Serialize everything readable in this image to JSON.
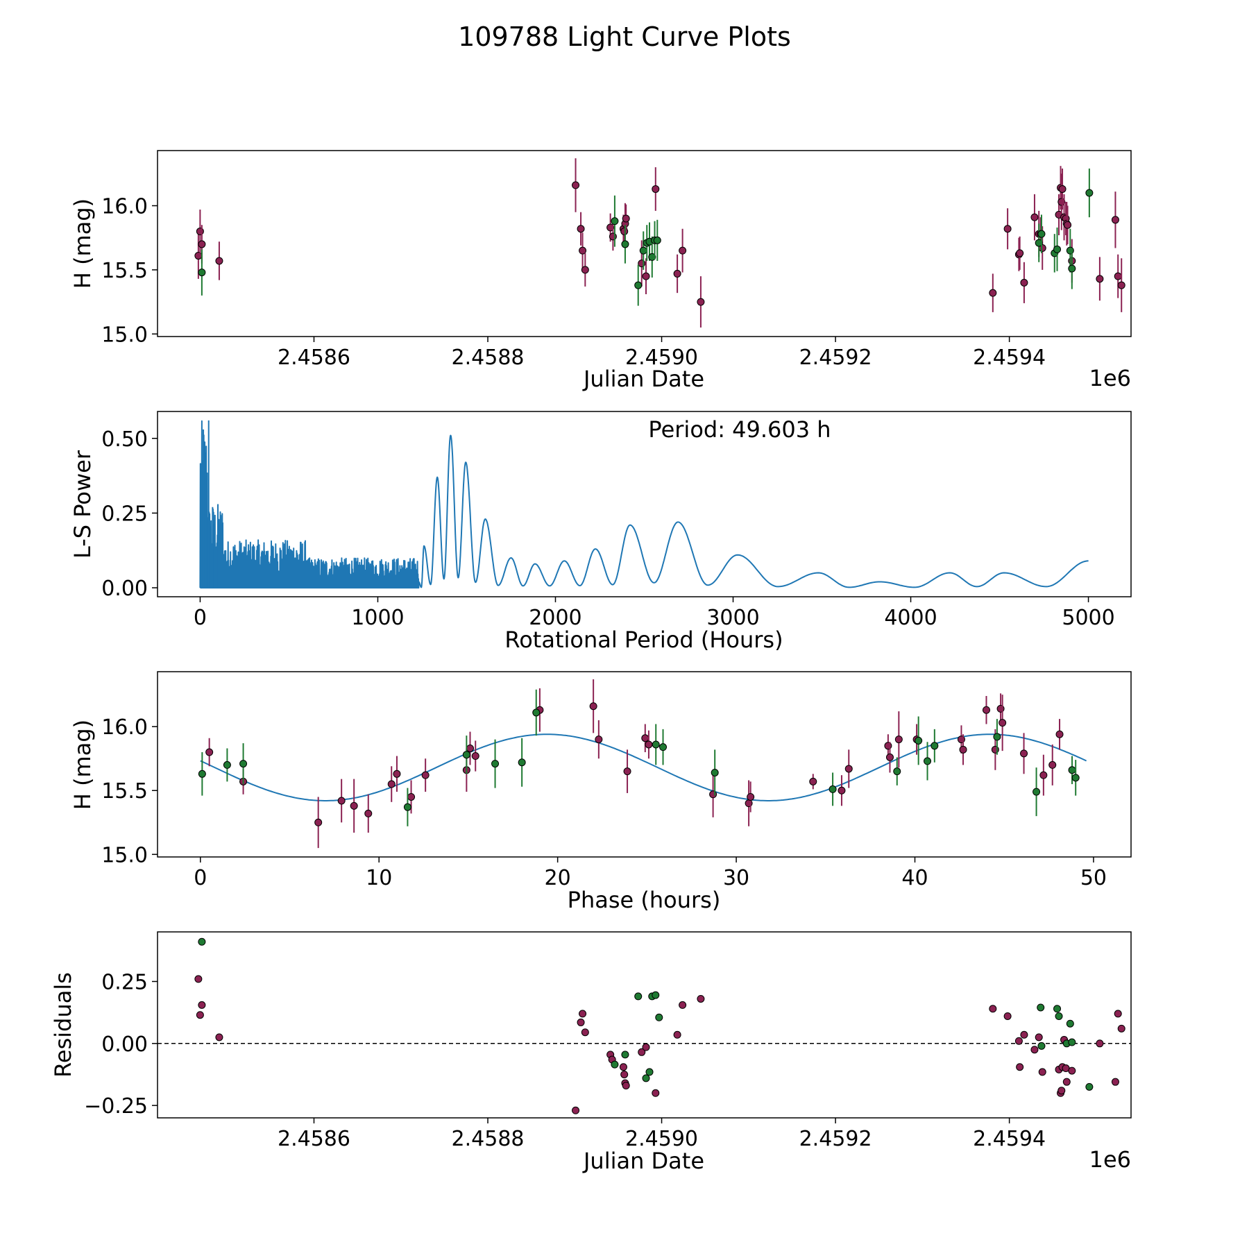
{
  "figure": {
    "title": "109788 Light Curve Plots"
  },
  "colors": {
    "maroon": "#8b2252",
    "green": "#1f7a32",
    "curve": "#1f77b4",
    "axis": "#000000"
  },
  "chart_data": [
    {
      "id": "jd",
      "type": "scatter",
      "title": "",
      "xlabel": "Julian Date",
      "ylabel": "H (mag)",
      "offset_text": "1e6",
      "xlim": [
        2.45842,
        2.45954
      ],
      "ylim": [
        14.98,
        16.43
      ],
      "xticks": [
        2.4586,
        2.4588,
        2.459,
        2.4592,
        2.4594
      ],
      "xtick_labels": [
        "2.4586",
        "2.4588",
        "2.4590",
        "2.4592",
        "2.4594"
      ],
      "yticks": [
        15.0,
        15.5,
        16.0
      ],
      "ytick_labels": [
        "15.0",
        "15.5",
        "16.0"
      ],
      "series": [
        {
          "name": "filter-maroon",
          "color": "maroon",
          "points": [
            [
              2.458467,
              15.61,
              0.18
            ],
            [
              2.458469,
              15.8,
              0.17
            ],
            [
              2.458471,
              15.7,
              0.15
            ],
            [
              2.458491,
              15.57,
              0.15
            ],
            [
              2.458901,
              16.16,
              0.21
            ],
            [
              2.458907,
              15.82,
              0.13
            ],
            [
              2.458909,
              15.65,
              0.14
            ],
            [
              2.458912,
              15.5,
              0.13
            ],
            [
              2.458941,
              15.83,
              0.11
            ],
            [
              2.458944,
              15.76,
              0.11
            ],
            [
              2.458956,
              15.82,
              0.11
            ],
            [
              2.458957,
              15.8,
              0.12
            ],
            [
              2.458958,
              15.86,
              0.16
            ],
            [
              2.458959,
              15.9,
              0.11
            ],
            [
              2.458977,
              15.55,
              0.18
            ],
            [
              2.458982,
              15.45,
              0.14
            ],
            [
              2.458993,
              16.13,
              0.17
            ],
            [
              2.459018,
              15.47,
              0.15
            ],
            [
              2.459024,
              15.65,
              0.17
            ],
            [
              2.459045,
              15.25,
              0.2
            ],
            [
              2.459381,
              15.32,
              0.15
            ],
            [
              2.459398,
              15.82,
              0.16
            ],
            [
              2.459411,
              15.62,
              0.13
            ],
            [
              2.459412,
              15.63,
              0.13
            ],
            [
              2.459417,
              15.4,
              0.16
            ],
            [
              2.459429,
              15.91,
              0.18
            ],
            [
              2.459434,
              15.78,
              0.18
            ],
            [
              2.459436,
              15.78,
              0.13
            ],
            [
              2.459438,
              15.67,
              0.17
            ],
            [
              2.459457,
              15.93,
              0.16
            ],
            [
              2.459459,
              16.14,
              0.17
            ],
            [
              2.45946,
              16.03,
              0.22
            ],
            [
              2.459461,
              16.13,
              0.16
            ],
            [
              2.459463,
              15.91,
              0.18
            ],
            [
              2.459465,
              15.9,
              0.13
            ],
            [
              2.459466,
              15.86,
              0.17
            ],
            [
              2.459467,
              15.85,
              0.15
            ],
            [
              2.459472,
              15.57,
              0.17
            ],
            [
              2.459504,
              15.43,
              0.17
            ],
            [
              2.459522,
              15.89,
              0.22
            ],
            [
              2.459525,
              15.45,
              0.17
            ],
            [
              2.459529,
              15.38,
              0.21
            ]
          ]
        },
        {
          "name": "filter-green",
          "color": "green",
          "points": [
            [
              2.458471,
              15.48,
              0.18
            ],
            [
              2.458946,
              15.88,
              0.2
            ],
            [
              2.458958,
              15.7,
              0.15
            ],
            [
              2.458973,
              15.38,
              0.16
            ],
            [
              2.458979,
              15.65,
              0.15
            ],
            [
              2.458983,
              15.71,
              0.14
            ],
            [
              2.458986,
              15.72,
              0.15
            ],
            [
              2.458989,
              15.6,
              0.16
            ],
            [
              2.458992,
              15.73,
              0.15
            ],
            [
              2.458995,
              15.73,
              0.16
            ],
            [
              2.459434,
              15.71,
              0.15
            ],
            [
              2.459437,
              15.78,
              0.15
            ],
            [
              2.459452,
              15.63,
              0.15
            ],
            [
              2.459455,
              15.66,
              0.17
            ],
            [
              2.45947,
              15.65,
              0.17
            ],
            [
              2.459472,
              15.51,
              0.16
            ],
            [
              2.459492,
              16.1,
              0.19
            ]
          ]
        }
      ]
    },
    {
      "id": "periodogram",
      "type": "line",
      "title": "",
      "xlabel": "Rotational Period (Hours)",
      "ylabel": "L-S Power",
      "annotation": "Period: 49.603 h",
      "xlim": [
        -240,
        5240
      ],
      "ylim": [
        -0.03,
        0.59
      ],
      "xticks": [
        0,
        1000,
        2000,
        3000,
        4000,
        5000
      ],
      "xtick_labels": [
        "0",
        "1000",
        "2000",
        "3000",
        "4000",
        "5000"
      ],
      "yticks": [
        0.0,
        0.25,
        0.5
      ],
      "ytick_labels": [
        "0.00",
        "0.25",
        "0.50"
      ],
      "peaks": [
        [
          1260,
          0.14
        ],
        [
          1335,
          0.37
        ],
        [
          1410,
          0.51
        ],
        [
          1495,
          0.42
        ],
        [
          1605,
          0.23
        ],
        [
          1750,
          0.1
        ],
        [
          1885,
          0.08
        ],
        [
          2050,
          0.09
        ],
        [
          2225,
          0.13
        ],
        [
          2420,
          0.21
        ],
        [
          2690,
          0.22
        ],
        [
          3025,
          0.11
        ],
        [
          3480,
          0.05
        ],
        [
          3825,
          0.02
        ],
        [
          4220,
          0.05
        ],
        [
          4525,
          0.05
        ],
        [
          5000,
          0.09
        ]
      ],
      "dense_region": {
        "x_start": 0,
        "x_end": 1230,
        "max_power": 0.56
      }
    },
    {
      "id": "phase",
      "type": "scatter",
      "title": "",
      "xlabel": "Phase (hours)",
      "ylabel": "H (mag)",
      "xlim": [
        -2.4,
        52.1
      ],
      "ylim": [
        14.98,
        16.43
      ],
      "xticks": [
        0,
        10,
        20,
        30,
        40,
        50
      ],
      "xtick_labels": [
        "0",
        "10",
        "20",
        "30",
        "40",
        "50"
      ],
      "yticks": [
        15.0,
        15.5,
        16.0
      ],
      "ytick_labels": [
        "15.0",
        "15.5",
        "16.0"
      ],
      "fit": {
        "mean": 15.68,
        "amplitude": 0.26,
        "period": 24.8,
        "phase_of_max": 19.4,
        "x_range": [
          0,
          49.6
        ]
      },
      "series": [
        {
          "name": "filter-maroon",
          "color": "maroon",
          "points": [
            [
              0.5,
              15.8,
              0.11
            ],
            [
              2.4,
              15.57,
              0.1
            ],
            [
              6.6,
              15.25,
              0.2
            ],
            [
              7.9,
              15.42,
              0.17
            ],
            [
              8.6,
              15.38,
              0.21
            ],
            [
              9.4,
              15.32,
              0.15
            ],
            [
              10.7,
              15.55,
              0.14
            ],
            [
              11.0,
              15.63,
              0.14
            ],
            [
              11.8,
              15.45,
              0.13
            ],
            [
              12.6,
              15.62,
              0.13
            ],
            [
              14.9,
              15.66,
              0.17
            ],
            [
              15.1,
              15.83,
              0.13
            ],
            [
              15.4,
              15.77,
              0.12
            ],
            [
              19.0,
              16.13,
              0.17
            ],
            [
              22.0,
              16.16,
              0.21
            ],
            [
              22.3,
              15.9,
              0.15
            ],
            [
              23.9,
              15.65,
              0.17
            ],
            [
              24.9,
              15.91,
              0.11
            ],
            [
              25.1,
              15.86,
              0.11
            ],
            [
              28.7,
              15.47,
              0.18
            ],
            [
              30.7,
              15.4,
              0.18
            ],
            [
              30.8,
              15.45,
              0.12
            ],
            [
              34.3,
              15.57,
              0.06
            ],
            [
              35.9,
              15.5,
              0.12
            ],
            [
              36.3,
              15.67,
              0.15
            ],
            [
              38.5,
              15.85,
              0.09
            ],
            [
              38.6,
              15.76,
              0.12
            ],
            [
              39.1,
              15.9,
              0.22
            ],
            [
              40.1,
              15.9,
              0.12
            ],
            [
              42.6,
              15.9,
              0.11
            ],
            [
              42.7,
              15.82,
              0.12
            ],
            [
              44.0,
              16.13,
              0.11
            ],
            [
              44.5,
              15.82,
              0.16
            ],
            [
              44.8,
              16.14,
              0.12
            ],
            [
              44.9,
              16.03,
              0.22
            ],
            [
              46.1,
              15.79,
              0.16
            ],
            [
              47.2,
              15.62,
              0.16
            ],
            [
              47.7,
              15.7,
              0.16
            ],
            [
              48.1,
              15.94,
              0.12
            ]
          ]
        },
        {
          "name": "filter-green",
          "color": "green",
          "points": [
            [
              0.1,
              15.63,
              0.17
            ],
            [
              1.5,
              15.7,
              0.13
            ],
            [
              2.4,
              15.71,
              0.16
            ],
            [
              11.6,
              15.37,
              0.15
            ],
            [
              14.9,
              15.78,
              0.15
            ],
            [
              16.5,
              15.71,
              0.19
            ],
            [
              18.0,
              15.72,
              0.19
            ],
            [
              18.8,
              16.11,
              0.18
            ],
            [
              25.5,
              15.86,
              0.16
            ],
            [
              25.9,
              15.84,
              0.14
            ],
            [
              28.8,
              15.64,
              0.18
            ],
            [
              35.4,
              15.51,
              0.13
            ],
            [
              39.0,
              15.65,
              0.11
            ],
            [
              40.2,
              15.89,
              0.19
            ],
            [
              40.7,
              15.73,
              0.15
            ],
            [
              41.1,
              15.85,
              0.13
            ],
            [
              44.6,
              15.92,
              0.14
            ],
            [
              46.8,
              15.49,
              0.19
            ],
            [
              48.8,
              15.66,
              0.11
            ],
            [
              49.0,
              15.6,
              0.14
            ]
          ]
        }
      ]
    },
    {
      "id": "residuals",
      "type": "scatter",
      "title": "",
      "xlabel": "Julian Date",
      "ylabel": "Residuals",
      "offset_text": "1e6",
      "xlim": [
        2.45842,
        2.45954
      ],
      "ylim": [
        -0.3,
        0.45
      ],
      "xticks": [
        2.4586,
        2.4588,
        2.459,
        2.4592,
        2.4594
      ],
      "xtick_labels": [
        "2.4586",
        "2.4588",
        "2.4590",
        "2.4592",
        "2.4594"
      ],
      "yticks": [
        -0.25,
        0.0,
        0.25
      ],
      "ytick_labels": [
        "−0.25",
        "0.00",
        "0.25"
      ],
      "zero_line": 0.0,
      "series": [
        {
          "name": "filter-maroon",
          "color": "maroon",
          "points": [
            [
              2.458467,
              0.26
            ],
            [
              2.458469,
              0.115
            ],
            [
              2.458471,
              0.155
            ],
            [
              2.458491,
              0.025
            ],
            [
              2.458901,
              -0.27
            ],
            [
              2.458907,
              0.085
            ],
            [
              2.458909,
              0.12
            ],
            [
              2.458912,
              0.045
            ],
            [
              2.458941,
              -0.045
            ],
            [
              2.458943,
              -0.065
            ],
            [
              2.458956,
              -0.095
            ],
            [
              2.458957,
              -0.125
            ],
            [
              2.458958,
              -0.16
            ],
            [
              2.458959,
              -0.17
            ],
            [
              2.458977,
              -0.035
            ],
            [
              2.458982,
              -0.015
            ],
            [
              2.458993,
              -0.2
            ],
            [
              2.459018,
              0.035
            ],
            [
              2.459024,
              0.155
            ],
            [
              2.459045,
              0.18
            ],
            [
              2.459381,
              0.14
            ],
            [
              2.459398,
              0.11
            ],
            [
              2.459411,
              0.01
            ],
            [
              2.459412,
              -0.095
            ],
            [
              2.459417,
              0.035
            ],
            [
              2.459429,
              -0.025
            ],
            [
              2.459434,
              0.025
            ],
            [
              2.459438,
              -0.115
            ],
            [
              2.459457,
              -0.105
            ],
            [
              2.459459,
              -0.2
            ],
            [
              2.45946,
              -0.19
            ],
            [
              2.459461,
              -0.095
            ],
            [
              2.459463,
              0.015
            ],
            [
              2.459465,
              -0.1
            ],
            [
              2.459466,
              -0.155
            ],
            [
              2.459472,
              -0.11
            ],
            [
              2.459504,
              0.0
            ],
            [
              2.459522,
              -0.155
            ],
            [
              2.459525,
              0.12
            ],
            [
              2.459529,
              0.06
            ]
          ]
        },
        {
          "name": "filter-green",
          "color": "green",
          "points": [
            [
              2.458471,
              0.41
            ],
            [
              2.458946,
              -0.085
            ],
            [
              2.458958,
              -0.045
            ],
            [
              2.458973,
              0.19
            ],
            [
              2.458982,
              -0.14
            ],
            [
              2.458986,
              -0.115
            ],
            [
              2.458989,
              0.19
            ],
            [
              2.458993,
              0.195
            ],
            [
              2.458997,
              0.105
            ],
            [
              2.459436,
              0.145
            ],
            [
              2.459437,
              -0.01
            ],
            [
              2.459455,
              0.14
            ],
            [
              2.459457,
              0.11
            ],
            [
              2.459466,
              0.0
            ],
            [
              2.45947,
              0.08
            ],
            [
              2.459472,
              0.005
            ],
            [
              2.459492,
              -0.175
            ]
          ]
        }
      ]
    }
  ]
}
